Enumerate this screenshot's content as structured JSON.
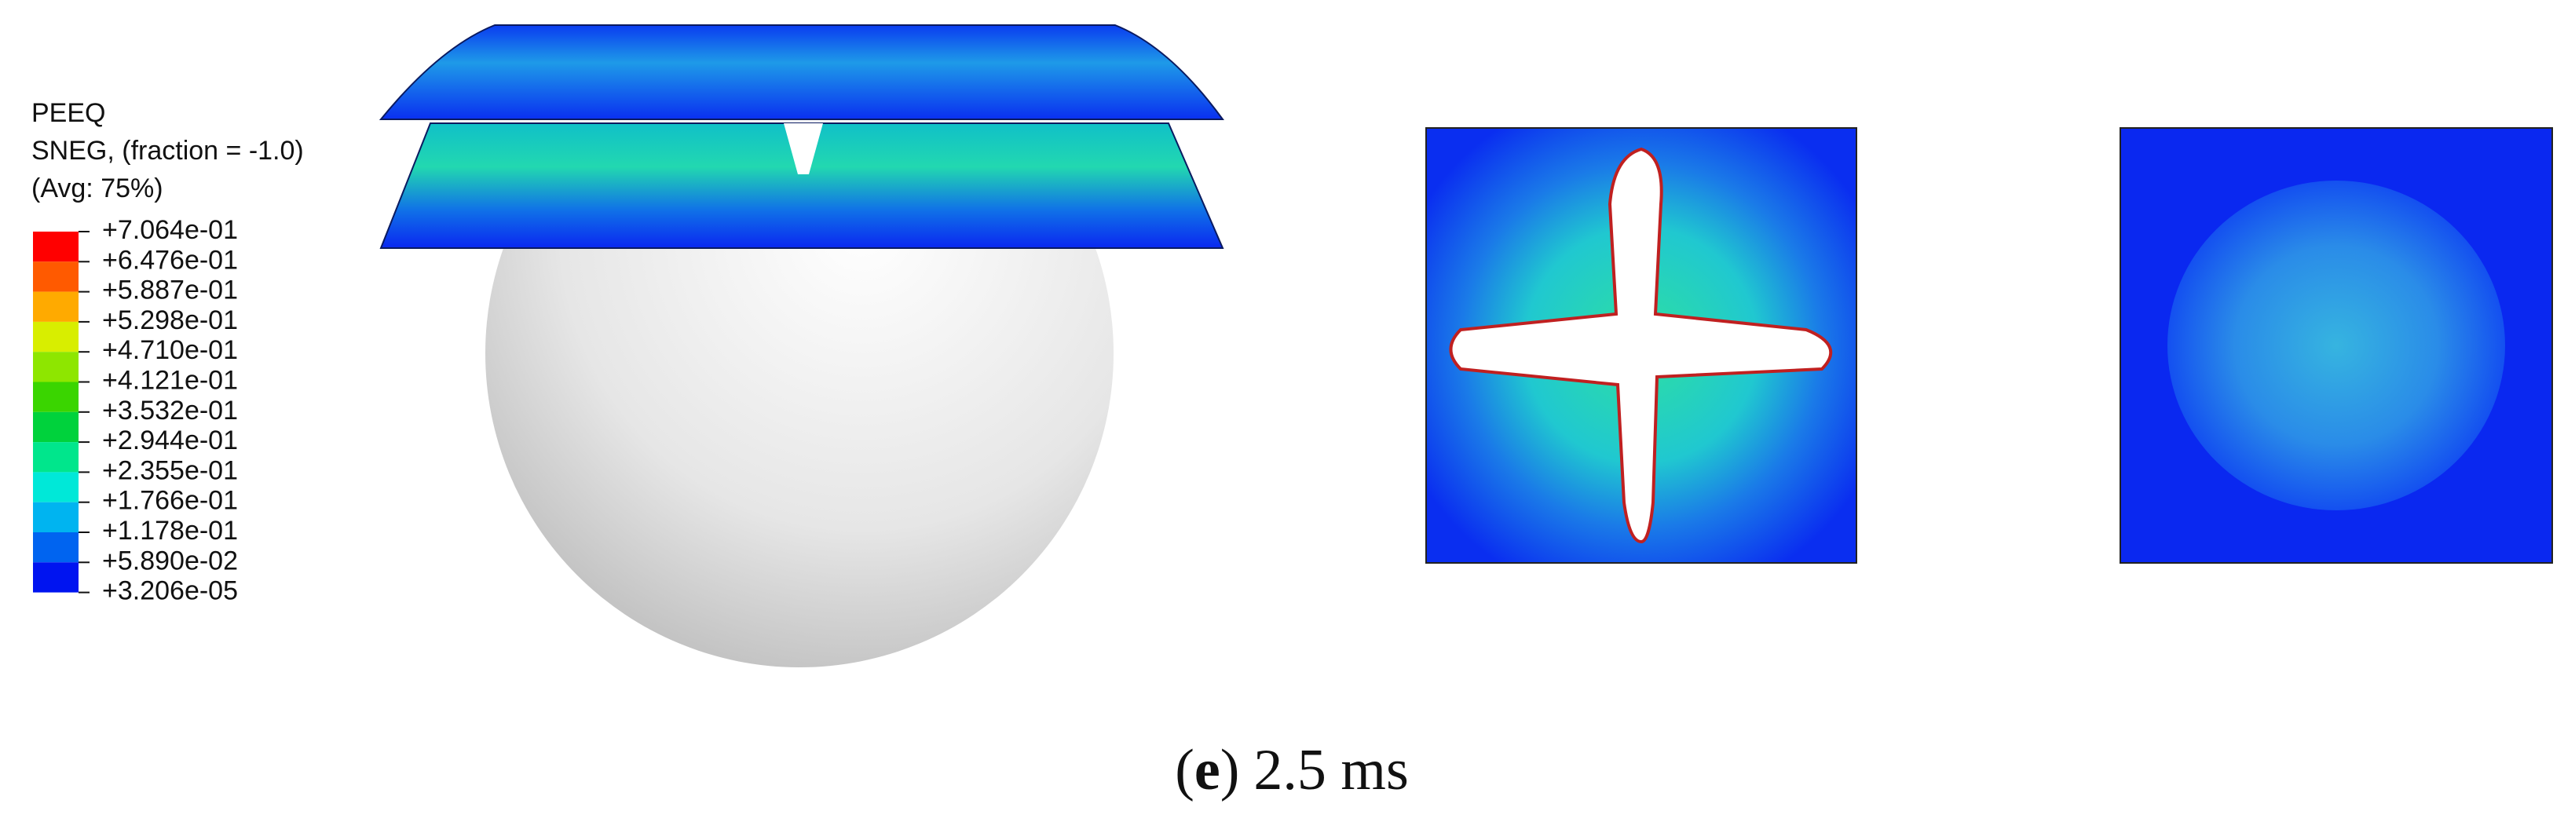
{
  "legend": {
    "title_lines": [
      "PEEQ",
      "SNEG, (fraction = -1.0)",
      "(Avg: 75%)"
    ],
    "labels": [
      "+7.064e-01",
      "+6.476e-01",
      "+5.887e-01",
      "+5.298e-01",
      "+4.710e-01",
      "+4.121e-01",
      "+3.532e-01",
      "+2.944e-01",
      "+2.355e-01",
      "+1.766e-01",
      "+1.178e-01",
      "+5.890e-02",
      "+3.206e-05"
    ],
    "colors": [
      "#ff0000",
      "#ff5a00",
      "#ffaa00",
      "#d8ee00",
      "#8ee600",
      "#3ad500",
      "#00d23c",
      "#00e68c",
      "#00e8d8",
      "#00b4f0",
      "#0064f0",
      "#0014f0"
    ]
  },
  "caption": {
    "open": "(",
    "letter": "e",
    "close": ")",
    "text": "2.5 ms"
  }
}
